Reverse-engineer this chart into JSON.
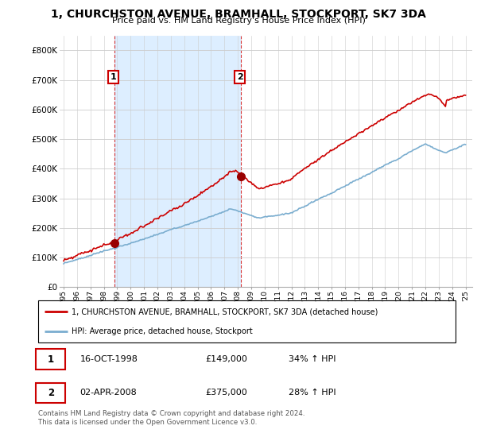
{
  "title": "1, CHURCHSTON AVENUE, BRAMHALL, STOCKPORT, SK7 3DA",
  "subtitle": "Price paid vs. HM Land Registry's House Price Index (HPI)",
  "ylim": [
    0,
    850000
  ],
  "yticks": [
    0,
    100000,
    200000,
    300000,
    400000,
    500000,
    600000,
    700000,
    800000
  ],
  "ytick_labels": [
    "£0",
    "£100K",
    "£200K",
    "£300K",
    "£400K",
    "£500K",
    "£600K",
    "£700K",
    "£800K"
  ],
  "xlim_start": 1994.7,
  "xlim_end": 2025.5,
  "property_color": "#cc0000",
  "hpi_color": "#7aadcf",
  "shade_color": "#ddeeff",
  "sale1_year": 1998.79,
  "sale1_price": 149000,
  "sale2_year": 2008.25,
  "sale2_price": 375000,
  "legend_property": "1, CHURCHSTON AVENUE, BRAMHALL, STOCKPORT, SK7 3DA (detached house)",
  "legend_hpi": "HPI: Average price, detached house, Stockport",
  "table_row1": [
    "1",
    "16-OCT-1998",
    "£149,000",
    "34% ↑ HPI"
  ],
  "table_row2": [
    "2",
    "02-APR-2008",
    "£375,000",
    "28% ↑ HPI"
  ],
  "footer": "Contains HM Land Registry data © Crown copyright and database right 2024.\nThis data is licensed under the Open Government Licence v3.0.",
  "background_color": "#ffffff",
  "grid_color": "#cccccc"
}
